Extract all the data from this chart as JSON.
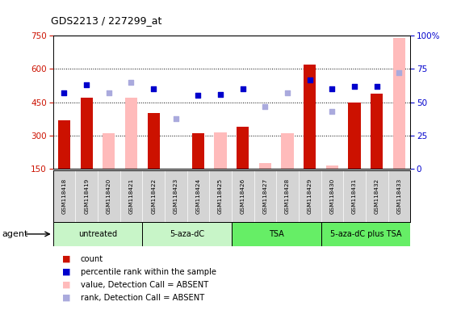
{
  "title": "GDS2213 / 227299_at",
  "samples": [
    "GSM118418",
    "GSM118419",
    "GSM118420",
    "GSM118421",
    "GSM118422",
    "GSM118423",
    "GSM118424",
    "GSM118425",
    "GSM118426",
    "GSM118427",
    "GSM118428",
    "GSM118429",
    "GSM118430",
    "GSM118431",
    "GSM118432",
    "GSM118433"
  ],
  "count_present": [
    370,
    470,
    null,
    null,
    400,
    null,
    310,
    null,
    340,
    null,
    null,
    620,
    null,
    450,
    490,
    null
  ],
  "count_absent": [
    null,
    null,
    310,
    470,
    null,
    null,
    null,
    315,
    null,
    175,
    310,
    null,
    165,
    null,
    null,
    740
  ],
  "rank_present": [
    57,
    63,
    null,
    null,
    60,
    null,
    55,
    56,
    60,
    null,
    null,
    67,
    60,
    62,
    62,
    null
  ],
  "rank_absent": [
    null,
    null,
    57,
    65,
    null,
    38,
    null,
    null,
    null,
    47,
    57,
    null,
    43,
    null,
    null,
    72
  ],
  "ylim_left": [
    150,
    750
  ],
  "ylim_right": [
    0,
    100
  ],
  "yticks_left": [
    150,
    300,
    450,
    600,
    750
  ],
  "yticks_right": [
    0,
    25,
    50,
    75,
    100
  ],
  "groups": [
    {
      "label": "untreated",
      "indices": [
        0,
        1,
        2,
        3
      ],
      "color": "#c8f5c8"
    },
    {
      "label": "5-aza-dC",
      "indices": [
        4,
        5,
        6,
        7
      ],
      "color": "#c8f5c8"
    },
    {
      "label": "TSA",
      "indices": [
        8,
        9,
        10,
        11
      ],
      "color": "#66ee66"
    },
    {
      "label": "5-aza-dC plus TSA",
      "indices": [
        12,
        13,
        14,
        15
      ],
      "color": "#66ee66"
    }
  ],
  "count_present_color": "#cc1100",
  "count_absent_color": "#ffbbbb",
  "rank_present_color": "#0000cc",
  "rank_absent_color": "#aaaadd",
  "sample_bg_color": "#d4d4d4",
  "plot_bg_color": "#ffffff"
}
